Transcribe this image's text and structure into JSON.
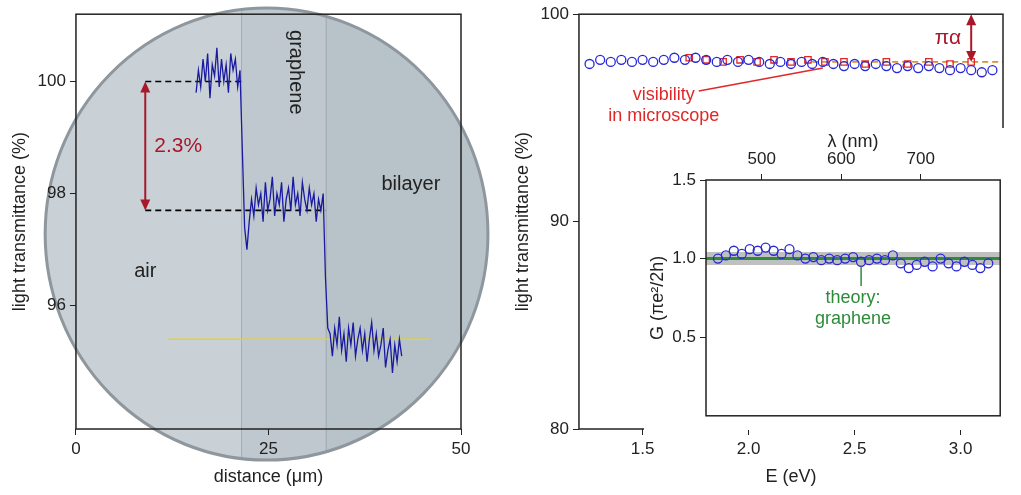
{
  "chart_data": [
    {
      "type": "line",
      "x_label": "distance (μm)",
      "y_label": "light transmittance (%)",
      "xlim": [
        0,
        50
      ],
      "xticks": [
        0,
        25,
        50
      ],
      "ylim": [
        93.8,
        101.2
      ],
      "yticks": [
        96,
        98,
        100
      ],
      "grid": false,
      "series": [
        {
          "color": "#1a1aa0",
          "marker": "none",
          "line_style": "solid",
          "x": [
            15.6,
            15.9,
            16.2,
            16.5,
            16.8,
            17.1,
            17.4,
            17.7,
            18.0,
            18.3,
            18.6,
            18.9,
            19.2,
            19.5,
            19.8,
            20.1,
            20.4,
            20.7,
            21.0,
            21.3,
            21.6,
            21.9,
            22.2,
            22.5,
            22.8,
            23.1,
            23.4,
            23.7,
            24.0,
            24.3,
            24.6,
            24.9,
            25.2,
            25.5,
            25.8,
            26.1,
            26.4,
            26.7,
            27.0,
            27.3,
            27.6,
            27.9,
            28.2,
            28.5,
            28.8,
            29.1,
            29.4,
            29.7,
            30.0,
            30.3,
            30.6,
            30.9,
            31.2,
            31.5,
            31.8,
            32.1,
            32.4,
            32.7,
            33.0,
            33.3,
            33.6,
            33.9,
            34.2,
            34.5,
            34.8,
            35.1,
            35.4,
            35.7,
            36.0,
            36.3,
            36.6,
            36.9,
            37.2,
            37.5,
            37.8,
            38.1,
            38.4,
            38.7,
            39.0,
            39.3,
            39.6,
            39.9,
            40.2,
            40.5,
            40.8,
            41.1,
            41.4,
            41.7,
            42.0,
            42.3
          ],
          "values": [
            99.8,
            100.2,
            99.9,
            100.4,
            100.0,
            100.5,
            99.7,
            100.3,
            100.1,
            100.6,
            99.9,
            100.4,
            100.0,
            100.3,
            99.8,
            100.5,
            100.2,
            100.4,
            99.9,
            100.2,
            98.8,
            97.4,
            97.0,
            97.5,
            97.9,
            97.6,
            98.1,
            97.8,
            98.0,
            97.5,
            98.2,
            97.7,
            97.9,
            98.3,
            97.6,
            98.0,
            97.8,
            98.2,
            97.5,
            97.9,
            98.1,
            97.7,
            98.3,
            97.8,
            98.0,
            97.6,
            98.2,
            97.9,
            97.7,
            98.1,
            97.8,
            98.0,
            97.5,
            97.9,
            97.7,
            98.0,
            96.5,
            95.6,
            95.5,
            95.1,
            95.6,
            95.3,
            95.8,
            95.2,
            95.5,
            95.0,
            95.6,
            95.3,
            95.7,
            95.1,
            95.4,
            95.6,
            95.2,
            95.5,
            95.0,
            95.4,
            95.7,
            95.2,
            95.5,
            95.1,
            95.3,
            95.6,
            94.9,
            95.2,
            95.4,
            94.8,
            95.3,
            95.0,
            95.4,
            95.1
          ]
        }
      ],
      "hlines": [
        {
          "y": 100,
          "x": [
            9,
            21.6
          ],
          "color": "#000000",
          "line_style": "dashed"
        },
        {
          "y": 97.7,
          "x": [
            9,
            32.4
          ],
          "color": "#000000",
          "line_style": "dashed"
        },
        {
          "y": 95.4,
          "x": [
            12,
            46
          ],
          "color": "#e6d22a",
          "line_style": "solid"
        }
      ],
      "annotations": [
        {
          "text": "2.3%",
          "x": 9,
          "y": [
            97.7,
            100
          ],
          "color": "#a8182a"
        }
      ],
      "region_labels": [
        "air",
        "graphene",
        "bilayer"
      ]
    },
    {
      "type": "scatter",
      "x_label": "E (eV)",
      "y_label": "light transmittance (%)",
      "xlim": [
        1.2,
        3.2
      ],
      "xticks": [
        1.5,
        {
          "value": 2,
          "label": "2.0"
        },
        2.5,
        {
          "value": 3,
          "label": "3.0"
        }
      ],
      "ylim": [
        80,
        100
      ],
      "yticks": [
        80,
        90,
        100
      ],
      "grid": false,
      "series": [
        {
          "color": "#2828d8",
          "marker": "circle",
          "x": [
            1.25,
            1.3,
            1.35,
            1.4,
            1.45,
            1.5,
            1.55,
            1.6,
            1.65,
            1.7,
            1.75,
            1.8,
            1.85,
            1.9,
            1.95,
            2.0,
            2.05,
            2.1,
            2.15,
            2.2,
            2.25,
            2.3,
            2.35,
            2.4,
            2.45,
            2.5,
            2.55,
            2.6,
            2.65,
            2.7,
            2.75,
            2.8,
            2.85,
            2.9,
            2.95,
            3.0,
            3.05,
            3.1,
            3.15
          ],
          "values": [
            97.6,
            97.8,
            97.7,
            97.8,
            97.7,
            97.8,
            97.7,
            97.8,
            97.9,
            97.8,
            97.9,
            97.8,
            97.7,
            97.8,
            97.7,
            97.8,
            97.7,
            97.6,
            97.7,
            97.6,
            97.7,
            97.6,
            97.7,
            97.6,
            97.5,
            97.6,
            97.5,
            97.6,
            97.5,
            97.4,
            97.5,
            97.4,
            97.5,
            97.4,
            97.3,
            97.4,
            97.3,
            97.2,
            97.3
          ]
        },
        {
          "name": "visibility in microscope",
          "color": "#e02828",
          "marker": "square",
          "x": [
            1.72,
            1.8,
            1.88,
            1.96,
            2.04,
            2.12,
            2.2,
            2.28,
            2.36,
            2.45,
            2.55,
            2.65,
            2.75,
            2.85,
            2.95,
            3.05
          ],
          "values": [
            97.9,
            97.8,
            97.7,
            97.8,
            97.7,
            97.8,
            97.7,
            97.8,
            97.7,
            97.7,
            97.6,
            97.7,
            97.6,
            97.7,
            97.6,
            97.7
          ]
        }
      ],
      "hlines": [
        {
          "y": 97.7,
          "x": [
            2.3,
            3.2
          ],
          "color": "#e0902c",
          "line_style": "dashed"
        }
      ],
      "annotations": [
        {
          "text": "πα",
          "x": 3.05,
          "y": [
            97.7,
            100
          ],
          "color": "#a8182a"
        }
      ]
    },
    {
      "type": "scatter",
      "x_label": "λ (nm)",
      "y_label": "G (πe²/2h)",
      "xlim": [
        430,
        800
      ],
      "xticks": [
        500,
        600,
        700
      ],
      "ylim": [
        0,
        1.5
      ],
      "yticks": [
        0.5,
        {
          "value": 1,
          "label": "1.0"
        },
        1.5
      ],
      "grid": false,
      "series": [
        {
          "color": "#2828d8",
          "marker": "circle",
          "x": [
            445,
            455,
            465,
            475,
            485,
            495,
            505,
            515,
            525,
            535,
            545,
            555,
            565,
            575,
            585,
            595,
            605,
            615,
            625,
            635,
            645,
            655,
            665,
            675,
            685,
            695,
            705,
            715,
            725,
            735,
            745,
            755,
            765,
            775,
            785
          ],
          "values": [
            1.0,
            1.02,
            1.05,
            1.03,
            1.06,
            1.05,
            1.07,
            1.05,
            1.03,
            1.06,
            1.02,
            1.0,
            1.01,
            0.99,
            1.0,
            0.99,
            1.0,
            1.01,
            0.98,
            0.99,
            1.0,
            0.99,
            1.02,
            0.97,
            0.94,
            0.96,
            0.98,
            0.95,
            1.0,
            0.97,
            0.95,
            0.98,
            0.96,
            0.94,
            0.97
          ]
        },
        {
          "name": "theory: graphene",
          "type": "line",
          "color": "#2e8b3a",
          "marker": "none",
          "x": [
            430,
            800
          ],
          "values": [
            1,
            1
          ]
        }
      ]
    }
  ]
}
